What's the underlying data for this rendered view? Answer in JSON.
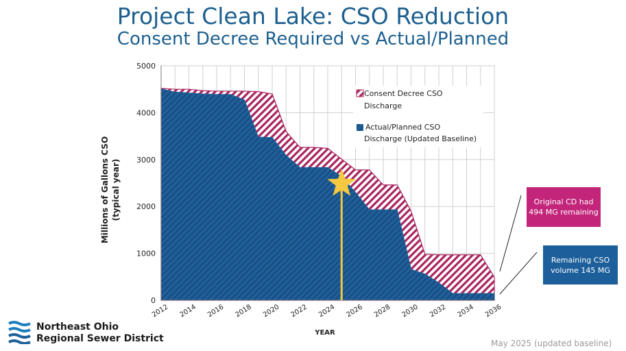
{
  "header": {
    "title": "Project Clean Lake: CSO Reduction",
    "subtitle": "Consent Decree Required vs Actual/Planned"
  },
  "chart_data": {
    "type": "area",
    "x": [
      2012,
      2013,
      2014,
      2015,
      2016,
      2017,
      2018,
      2019,
      2020,
      2021,
      2022,
      2023,
      2024,
      2025,
      2026,
      2027,
      2028,
      2029,
      2030,
      2031,
      2032,
      2033,
      2034,
      2035,
      2036
    ],
    "x_ticks": [
      2012,
      2014,
      2016,
      2018,
      2020,
      2022,
      2024,
      2026,
      2028,
      2030,
      2032,
      2034,
      2036
    ],
    "y_ticks": [
      0,
      1000,
      2000,
      3000,
      4000,
      5000
    ],
    "xlabel": "YEAR",
    "ylabel": "Millions of Gallons CSO\n(typical year)",
    "xlim": [
      2012,
      2036
    ],
    "ylim": [
      0,
      5000
    ],
    "grid": true,
    "legend_position": "top-right",
    "series": [
      {
        "name": "Consent Decree CSO Discharge",
        "color": "#a8235e",
        "pattern": "diagonal-hatch",
        "values": [
          4520,
          4500,
          4500,
          4470,
          4460,
          4460,
          4460,
          4450,
          4400,
          3600,
          3260,
          3260,
          3240,
          3010,
          2780,
          2780,
          2460,
          2460,
          1900,
          980,
          970,
          970,
          970,
          970,
          494
        ]
      },
      {
        "name": "Actual/Planned CSO Discharge (Updated Baseline)",
        "color": "#1f5f9b",
        "pattern": "diagonal-hatch",
        "values": [
          4510,
          4440,
          4420,
          4400,
          4390,
          4390,
          4270,
          3480,
          3470,
          3090,
          2830,
          2830,
          2830,
          2640,
          2300,
          1930,
          1930,
          1930,
          660,
          560,
          370,
          145,
          145,
          145,
          145
        ]
      }
    ],
    "marker": {
      "type": "star",
      "x": 2025,
      "color": "#f5c842"
    }
  },
  "callouts": {
    "original_cd": "Original CD had 494 MG remaining",
    "remaining": "Remaining CSO volume 145 MG"
  },
  "logo": {
    "line1": "Northeast Ohio",
    "line2": "Regional Sewer District"
  },
  "footnote": "May 2025 (updated baseline)"
}
